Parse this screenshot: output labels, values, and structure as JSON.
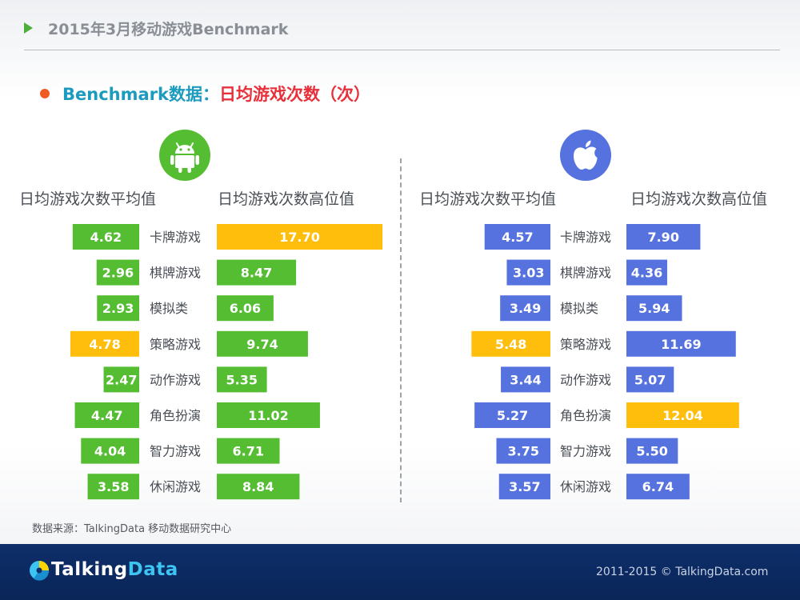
{
  "header": {
    "title": "2015年3月移动游戏Benchmark"
  },
  "subtitle": {
    "label": "Benchmark数据：",
    "metric": "日均游戏次数（次）"
  },
  "colors": {
    "android": "#55bd32",
    "ios": "#5572de",
    "highlight": "#ffbe0b",
    "accent": "#1d9bbf",
    "metric": "#e8303a"
  },
  "icons": {
    "android": "android-icon",
    "ios": "apple-icon"
  },
  "chart_data": [
    {
      "type": "bar",
      "platform_icon": "android-icon",
      "categories": [
        "卡牌游戏",
        "棋牌游戏",
        "模拟类",
        "策略游戏",
        "动作游戏",
        "角色扮演",
        "智力游戏",
        "休闲游戏"
      ],
      "series": [
        {
          "name": "日均游戏次数平均值",
          "values": [
            4.62,
            2.96,
            2.93,
            4.78,
            2.47,
            4.47,
            4.04,
            3.58
          ],
          "highlight_index": 3
        },
        {
          "name": "日均游戏次数高位值",
          "values": [
            17.7,
            8.47,
            6.06,
            9.74,
            5.35,
            11.02,
            6.71,
            8.84
          ],
          "highlight_index": 0
        }
      ]
    },
    {
      "type": "bar",
      "platform_icon": "apple-icon",
      "categories": [
        "卡牌游戏",
        "棋牌游戏",
        "模拟类",
        "策略游戏",
        "动作游戏",
        "角色扮演",
        "智力游戏",
        "休闲游戏"
      ],
      "series": [
        {
          "name": "日均游戏次数平均值",
          "values": [
            4.57,
            3.03,
            3.49,
            5.48,
            3.44,
            5.27,
            3.75,
            3.57
          ],
          "highlight_index": 3
        },
        {
          "name": "日均游戏次数高位值",
          "values": [
            7.9,
            4.36,
            5.94,
            11.69,
            5.07,
            12.04,
            5.5,
            6.74
          ],
          "highlight_index": 5
        }
      ]
    }
  ],
  "source": "数据来源：TalkingData 移动数据研究中心",
  "footer": {
    "logo_main": "Talking",
    "logo_data": "Data",
    "copyright": "2011-2015 © TalkingData.com"
  }
}
